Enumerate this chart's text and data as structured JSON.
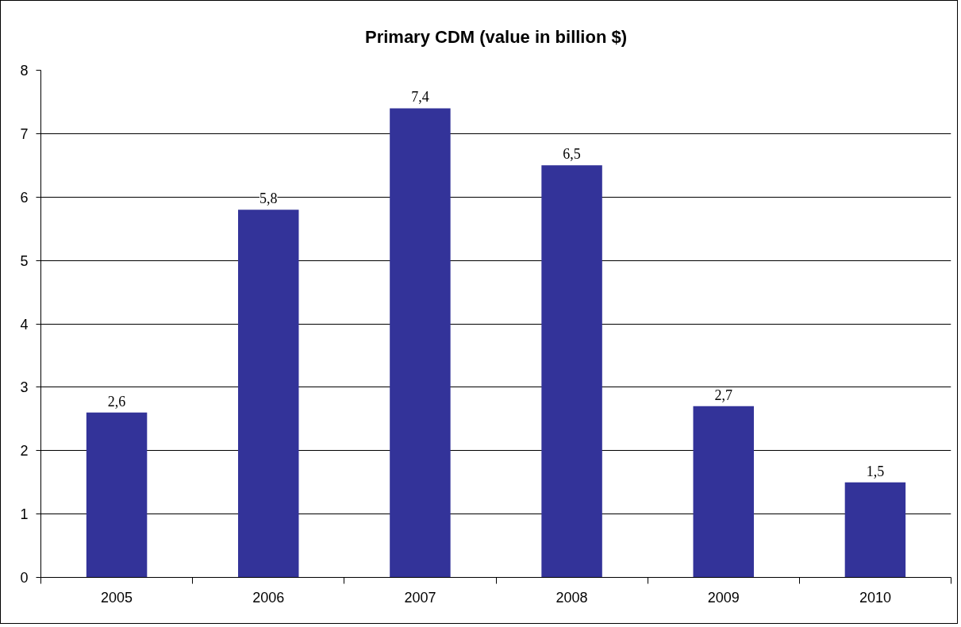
{
  "chart_data": {
    "type": "bar",
    "title": "Primary CDM (value in billion $)",
    "categories": [
      "2005",
      "2006",
      "2007",
      "2008",
      "2009",
      "2010"
    ],
    "values": [
      2.6,
      5.8,
      7.4,
      6.5,
      2.7,
      1.5
    ],
    "value_labels": [
      "2,6",
      "5,8",
      "7,4",
      "6,5",
      "2,7",
      "1,5"
    ],
    "color": "#333399",
    "ylim": [
      0,
      8
    ],
    "yticks": [
      0,
      1,
      2,
      3,
      4,
      5,
      6,
      7,
      8
    ],
    "grid": "y"
  }
}
